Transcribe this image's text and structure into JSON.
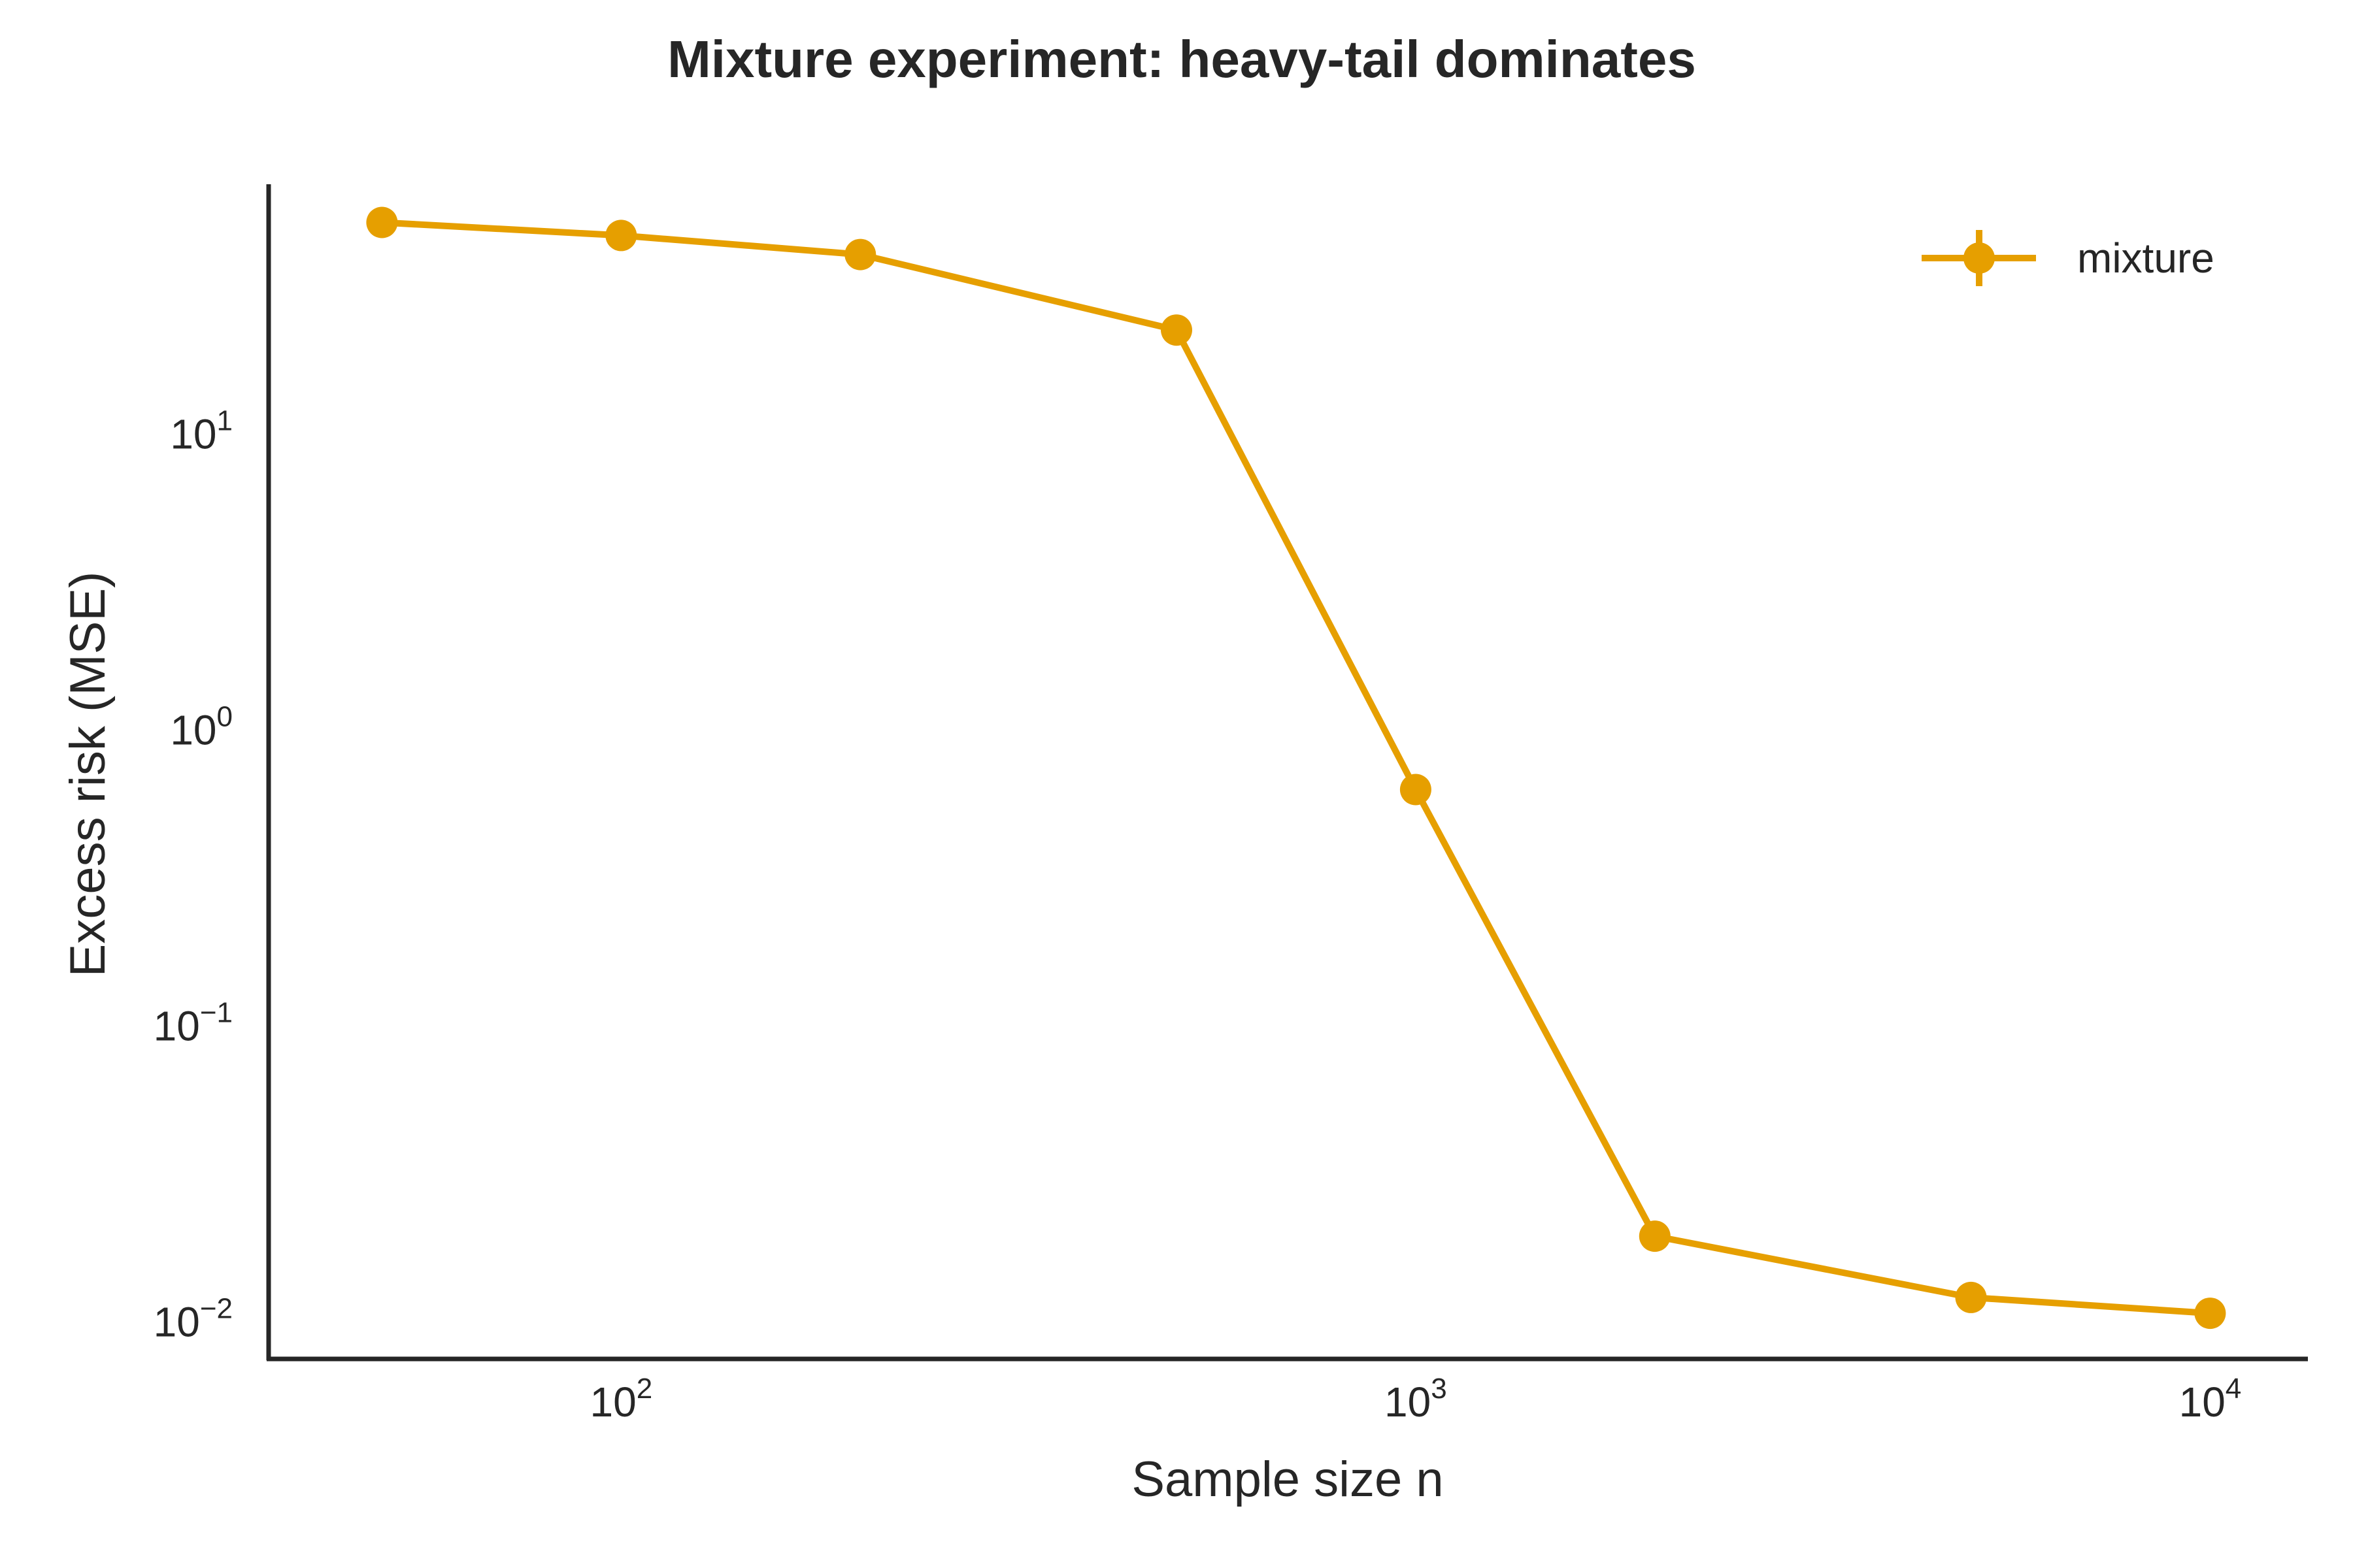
{
  "chart_data": {
    "type": "line",
    "title": "Mixture experiment: heavy-tail dominates",
    "xlabel": "Sample size n",
    "ylabel": "Excess risk (MSE)",
    "x_scale": "log",
    "y_scale": "log",
    "xlim": [
      36,
      13200
    ],
    "ylim": [
      0.0075,
      70
    ],
    "x_ticks": [
      {
        "value": 100,
        "base": "10",
        "exp": "2"
      },
      {
        "value": 1000,
        "base": "10",
        "exp": "3"
      },
      {
        "value": 10000,
        "base": "10",
        "exp": "4"
      }
    ],
    "y_ticks": [
      {
        "value": 0.01,
        "base": "10",
        "exp": "−2"
      },
      {
        "value": 0.1,
        "base": "10",
        "exp": "−1"
      },
      {
        "value": 1,
        "base": "10",
        "exp": "0"
      },
      {
        "value": 10,
        "base": "10",
        "exp": "1"
      }
    ],
    "grid": false,
    "legend": {
      "position": "top-right"
    },
    "series": [
      {
        "name": "mixture",
        "color": "#E69F00",
        "marker": "circle",
        "x": [
          50,
          100,
          200,
          500,
          1000,
          2000,
          5000,
          10000
        ],
        "y": [
          52,
          47,
          40.5,
          22.5,
          0.63,
          0.0195,
          0.0121,
          0.0107
        ]
      }
    ]
  }
}
